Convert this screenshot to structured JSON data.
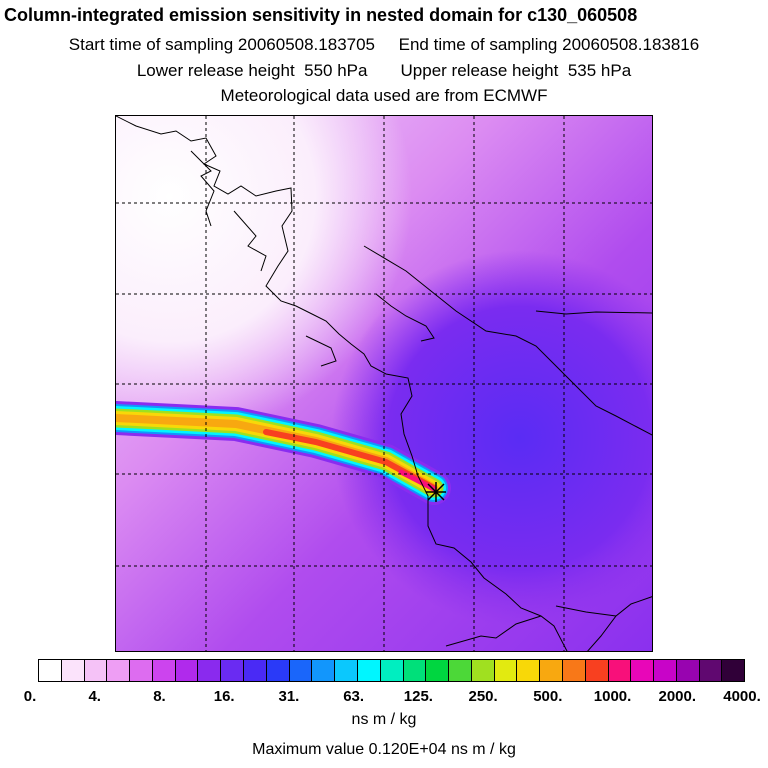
{
  "header": {
    "title": "Column-integrated emission sensitivity in nested domain for c130_060508",
    "start_label": "Start time of sampling",
    "start_value": "20060508.183705",
    "end_label": "End time of sampling",
    "end_value": "20060508.183816",
    "lower_label": "Lower release height",
    "lower_value": "550 hPa",
    "upper_label": "Upper release height",
    "upper_value": "535 hPa",
    "met_text": "Meteorological data used are from ECMWF"
  },
  "colorbar": {
    "colors": [
      "#ffffff",
      "#fbe3fb",
      "#f5c2f7",
      "#ee9ef4",
      "#dd6cf0",
      "#cc44ee",
      "#b02aec",
      "#8a2aee",
      "#6a2bf2",
      "#4a2af5",
      "#2a3af8",
      "#1a66fa",
      "#1296fc",
      "#0bc8fd",
      "#00f6ff",
      "#00eec0",
      "#00e07a",
      "#00d640",
      "#4cd838",
      "#a0e020",
      "#e2ea10",
      "#f8d808",
      "#f8a810",
      "#f87818",
      "#f84020",
      "#f8107a",
      "#e806b8",
      "#c804c8",
      "#9804b0",
      "#600870",
      "#300038"
    ],
    "tick_labels": [
      "0.",
      "4.",
      "8.",
      "16.",
      "31.",
      "63.",
      "125.",
      "250.",
      "500.",
      "1000.",
      "2000.",
      "4000."
    ],
    "units": "ns m / kg"
  },
  "footer": {
    "max_label": "Maximum value",
    "max_value": "0.120E+04",
    "max_units": "ns m / kg"
  }
}
